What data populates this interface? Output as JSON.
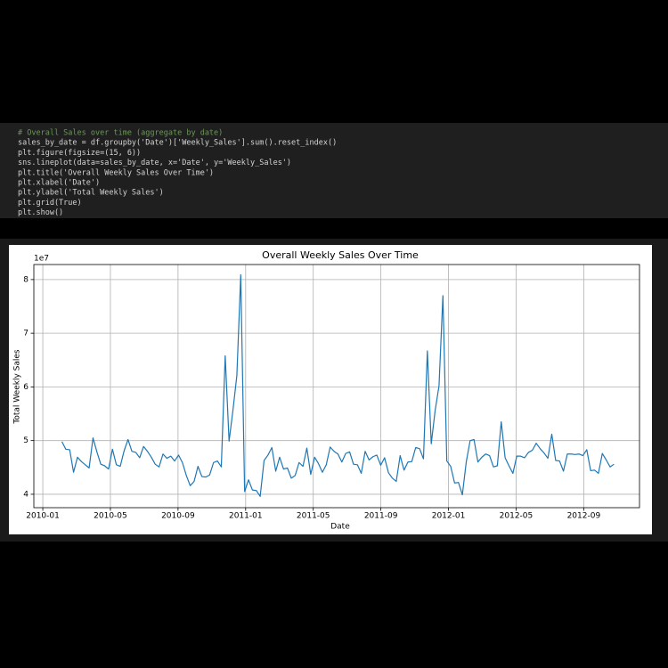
{
  "code": {
    "lines": [
      "# Overall Sales over time (aggregate by date)",
      "sales_by_date = df.groupby('Date')['Weekly_Sales'].sum().reset_index()",
      "plt.figure(figsize=(15, 6))",
      "sns.lineplot(data=sales_by_date, x='Date', y='Weekly_Sales')",
      "plt.title('Overall Weekly Sales Over Time')",
      "plt.xlabel('Date')",
      "plt.ylabel('Total Weekly Sales')",
      "plt.grid(True)",
      "plt.show()"
    ]
  },
  "chart_data": {
    "type": "line",
    "title": "Overall Weekly Sales Over Time",
    "x_label": "Date",
    "y_label": "Total Weekly Sales",
    "offset_label": "1e7",
    "color": "#1f77b4",
    "grid": true,
    "xlim": [
      -0.53,
      35.3
    ],
    "ylim": [
      3.75,
      8.28
    ],
    "xticks": [
      {
        "value": 0,
        "label": "2010-01"
      },
      {
        "value": 4,
        "label": "2010-05"
      },
      {
        "value": 8,
        "label": "2010-09"
      },
      {
        "value": 12,
        "label": "2011-01"
      },
      {
        "value": 16,
        "label": "2011-05"
      },
      {
        "value": 20,
        "label": "2011-09"
      },
      {
        "value": 24,
        "label": "2012-01"
      },
      {
        "value": 28,
        "label": "2012-05"
      },
      {
        "value": 32,
        "label": "2012-09"
      }
    ],
    "yticks": [
      4,
      5,
      6,
      7,
      8
    ],
    "x": [
      1.13,
      1.36,
      1.59,
      1.82,
      2.05,
      2.28,
      2.51,
      2.74,
      2.97,
      3.2,
      3.43,
      3.66,
      3.89,
      4.12,
      4.35,
      4.58,
      4.81,
      5.04,
      5.27,
      5.5,
      5.73,
      5.96,
      6.19,
      6.42,
      6.65,
      6.88,
      7.11,
      7.34,
      7.57,
      7.8,
      8.03,
      8.26,
      8.49,
      8.72,
      8.95,
      9.18,
      9.41,
      9.64,
      9.87,
      10.1,
      10.33,
      10.56,
      10.79,
      11.02,
      11.25,
      11.48,
      11.71,
      11.94,
      12.17,
      12.4,
      12.63,
      12.86,
      13.09,
      13.32,
      13.55,
      13.78,
      14.01,
      14.24,
      14.47,
      14.7,
      14.93,
      15.16,
      15.39,
      15.62,
      15.85,
      16.08,
      16.31,
      16.54,
      16.77,
      17.0,
      17.23,
      17.46,
      17.69,
      17.92,
      18.15,
      18.38,
      18.61,
      18.84,
      19.07,
      19.3,
      19.53,
      19.76,
      19.99,
      20.22,
      20.45,
      20.68,
      20.91,
      21.14,
      21.37,
      21.6,
      21.83,
      22.06,
      22.29,
      22.52,
      22.75,
      22.98,
      23.21,
      23.44,
      23.67,
      23.9,
      24.13,
      24.36,
      24.59,
      24.82,
      25.05,
      25.28,
      25.51,
      25.74,
      25.97,
      26.2,
      26.43,
      26.66,
      26.89,
      27.12,
      27.35,
      27.58,
      27.81,
      28.04,
      28.27,
      28.5,
      28.73,
      28.96,
      29.19,
      29.42,
      29.65,
      29.88,
      30.11,
      30.34,
      30.57,
      30.8,
      31.03,
      31.26,
      31.49,
      31.72,
      31.95,
      32.18,
      32.41,
      32.64,
      32.87,
      33.1,
      33.33,
      33.56,
      33.79
    ],
    "values": [
      4.98,
      4.84,
      4.83,
      4.41,
      4.69,
      4.61,
      4.55,
      4.49,
      5.05,
      4.79,
      4.56,
      4.53,
      4.47,
      4.84,
      4.55,
      4.52,
      4.81,
      5.02,
      4.8,
      4.78,
      4.68,
      4.89,
      4.8,
      4.69,
      4.56,
      4.51,
      4.75,
      4.67,
      4.71,
      4.62,
      4.73,
      4.59,
      4.35,
      4.16,
      4.24,
      4.52,
      4.33,
      4.32,
      4.36,
      4.59,
      4.62,
      4.51,
      6.58,
      4.99,
      5.57,
      6.21,
      8.09,
      4.05,
      4.27,
      4.08,
      4.07,
      3.96,
      4.63,
      4.73,
      4.87,
      4.43,
      4.69,
      4.47,
      4.49,
      4.3,
      4.35,
      4.59,
      4.52,
      4.86,
      4.37,
      4.69,
      4.57,
      4.41,
      4.55,
      4.88,
      4.8,
      4.75,
      4.6,
      4.76,
      4.79,
      4.56,
      4.55,
      4.39,
      4.8,
      4.64,
      4.7,
      4.73,
      4.54,
      4.68,
      4.4,
      4.3,
      4.24,
      4.72,
      4.45,
      4.6,
      4.61,
      4.87,
      4.85,
      4.66,
      6.67,
      4.94,
      5.56,
      6.02,
      7.7,
      4.62,
      4.52,
      4.21,
      4.22,
      3.99,
      4.6,
      5.0,
      5.02,
      4.6,
      4.69,
      4.75,
      4.72,
      4.51,
      4.53,
      5.35,
      4.68,
      4.53,
      4.39,
      4.71,
      4.71,
      4.68,
      4.78,
      4.82,
      4.95,
      4.85,
      4.77,
      4.67,
      5.12,
      4.63,
      4.62,
      4.43,
      4.75,
      4.75,
      4.74,
      4.75,
      4.72,
      4.83,
      4.44,
      4.45,
      4.39,
      4.76,
      4.64,
      4.51,
      4.56
    ]
  }
}
